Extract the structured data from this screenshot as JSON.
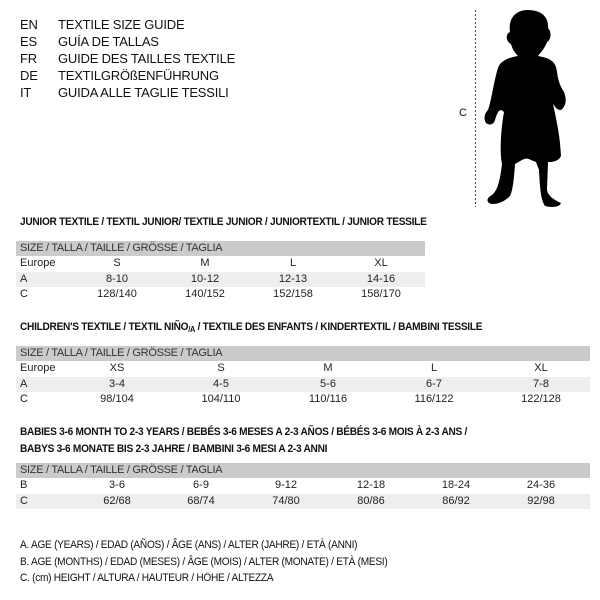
{
  "languages": [
    {
      "code": "EN",
      "title": "TEXTILE SIZE GUIDE"
    },
    {
      "code": "ES",
      "title": "GUÍA DE TALLAS"
    },
    {
      "code": "FR",
      "title": "GUIDE DES TAILLES TEXTILE"
    },
    {
      "code": "DE",
      "title": "TEXTILGRÖßENFÜHRUNG"
    },
    {
      "code": "IT",
      "title": "GUIDA ALLE TAGLIE TESSILI"
    }
  ],
  "figure": {
    "measure_label": "C",
    "icon": "child-silhouette-icon"
  },
  "junior": {
    "title": "JUNIOR TEXTILE / TEXTIL JUNIOR/ TEXTILE JUNIOR / JUNIORTEXTIL / JUNIOR TESSILE",
    "header": "SIZE / TALLA / TAILLE / GRÖSSE / TAGLIA",
    "rows": [
      {
        "label": "Europe",
        "values": [
          "S",
          "M",
          "L",
          "XL"
        ]
      },
      {
        "label": "A",
        "values": [
          "8-10",
          "10-12",
          "12-13",
          "14-16"
        ]
      },
      {
        "label": "C",
        "values": [
          "128/140",
          "140/152",
          "152/158",
          "158/170"
        ]
      }
    ]
  },
  "children": {
    "title_main": "CHILDREN'S TEXTILE / TEXTIL NIÑO",
    "title_sub": "/A",
    "title_rest": " / TEXTILE DES ENFANTS / KINDERTEXTIL / BAMBINI TESSILE",
    "header": "SIZE / TALLA / TAILLE / GRÖSSE / TAGLIA",
    "rows": [
      {
        "label": "Europe",
        "values": [
          "XS",
          "S",
          "M",
          "L",
          "XL"
        ]
      },
      {
        "label": "A",
        "values": [
          "3-4",
          "4-5",
          "5-6",
          "6-7",
          "7-8"
        ]
      },
      {
        "label": "C",
        "values": [
          "98/104",
          "104/110",
          "110/116",
          "116/122",
          "122/128"
        ]
      }
    ]
  },
  "babies": {
    "title_line1": "BABIES 3-6 MONTH TO 2-3 YEARS / BEBÉS 3-6 MESES A 2-3 AÑOS / BÉBÉS 3-6 MOIS À 2-3 ANS /",
    "title_line2": "BABYS 3-6 MONATE BIS 2-3 JAHRE / BAMBINI 3-6 MESI A 2-3 ANNI",
    "header": "SIZE / TALLA / TAILLE / GRÖSSE / TAGLIA",
    "rows": [
      {
        "label": "B",
        "values": [
          "3-6",
          "6-9",
          "9-12",
          "12-18",
          "18-24",
          "24-36"
        ]
      },
      {
        "label": "C",
        "values": [
          "62/68",
          "68/74",
          "74/80",
          "80/86",
          "86/92",
          "92/98"
        ]
      }
    ]
  },
  "legend": [
    "A. AGE (YEARS) / EDAD (AÑOS) / ÂGE (ANS) / ALTER (JAHRE) / ETÀ (ANNI)",
    "B. AGE (MONTHS) / EDAD (MESES) / ÂGE (MOIS) / ALTER (MONATE) / ETÀ (MESI)",
    "C. (cm) HEIGHT / ALTURA / HAUTEUR / HÖHE / ALTEZZA"
  ]
}
